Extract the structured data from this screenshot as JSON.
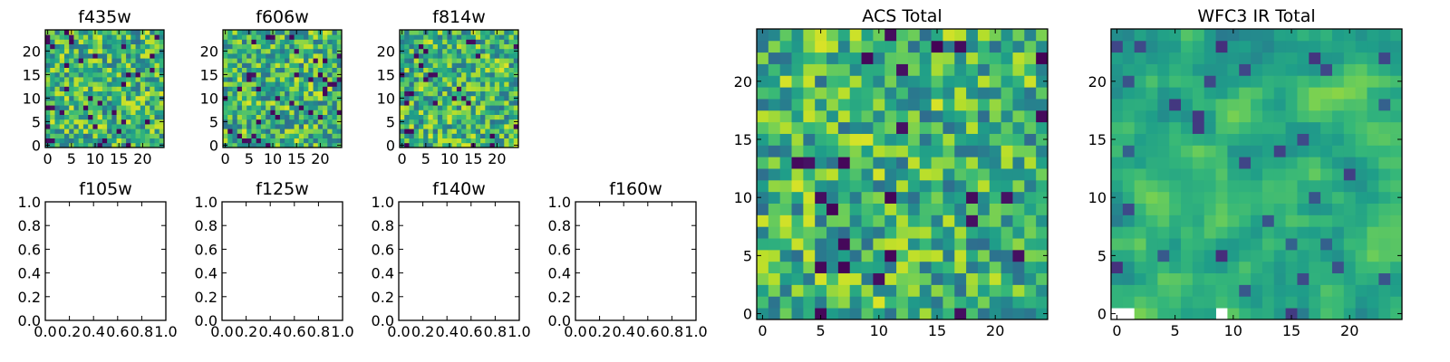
{
  "chart_data": [
    {
      "type": "heatmap",
      "title": "f435w",
      "xticks": [
        "0",
        "5",
        "10",
        "15",
        "20"
      ],
      "yticks": [
        "0",
        "5",
        "10",
        "15",
        "20"
      ],
      "xlim": [
        -0.5,
        24.5
      ],
      "ylim": [
        -0.5,
        24.5
      ],
      "grid_size": 25,
      "colormap": "viridis",
      "seed": 11
    },
    {
      "type": "heatmap",
      "title": "f606w",
      "xticks": [
        "0",
        "5",
        "10",
        "15",
        "20"
      ],
      "yticks": [
        "0",
        "5",
        "10",
        "15",
        "20"
      ],
      "xlim": [
        -0.5,
        24.5
      ],
      "ylim": [
        -0.5,
        24.5
      ],
      "grid_size": 25,
      "colormap": "viridis",
      "seed": 23
    },
    {
      "type": "heatmap",
      "title": "f814w",
      "xticks": [
        "0",
        "5",
        "10",
        "15",
        "20"
      ],
      "yticks": [
        "0",
        "5",
        "10",
        "15",
        "20"
      ],
      "xlim": [
        -0.5,
        24.5
      ],
      "ylim": [
        -0.5,
        24.5
      ],
      "grid_size": 25,
      "colormap": "viridis",
      "seed": 37
    },
    {
      "type": "empty",
      "title": "f105w",
      "xticks": [
        "0.0",
        "0.2",
        "0.4",
        "0.6",
        "0.8",
        "1.0"
      ],
      "yticks": [
        "0.0",
        "0.2",
        "0.4",
        "0.6",
        "0.8",
        "1.0"
      ],
      "xlim": [
        0,
        1
      ],
      "ylim": [
        0,
        1
      ]
    },
    {
      "type": "empty",
      "title": "f125w",
      "xticks": [
        "0.0",
        "0.2",
        "0.4",
        "0.6",
        "0.8",
        "1.0"
      ],
      "yticks": [
        "0.0",
        "0.2",
        "0.4",
        "0.6",
        "0.8",
        "1.0"
      ],
      "xlim": [
        0,
        1
      ],
      "ylim": [
        0,
        1
      ]
    },
    {
      "type": "empty",
      "title": "f140w",
      "xticks": [
        "0.0",
        "0.2",
        "0.4",
        "0.6",
        "0.8",
        "1.0"
      ],
      "yticks": [
        "0.0",
        "0.2",
        "0.4",
        "0.6",
        "0.8",
        "1.0"
      ],
      "xlim": [
        0,
        1
      ],
      "ylim": [
        0,
        1
      ]
    },
    {
      "type": "empty",
      "title": "f160w",
      "xticks": [
        "0.0",
        "0.2",
        "0.4",
        "0.6",
        "0.8",
        "1.0"
      ],
      "yticks": [
        "0.0",
        "0.2",
        "0.4",
        "0.6",
        "0.8",
        "1.0"
      ],
      "xlim": [
        0,
        1
      ],
      "ylim": [
        0,
        1
      ]
    },
    {
      "type": "heatmap",
      "title": "ACS Total",
      "xticks": [
        "0",
        "5",
        "10",
        "15",
        "20"
      ],
      "yticks": [
        "0",
        "5",
        "10",
        "15",
        "20"
      ],
      "xlim": [
        -0.5,
        24.5
      ],
      "ylim": [
        -0.5,
        24.5
      ],
      "grid_size": 25,
      "colormap": "viridis",
      "seed": 53
    },
    {
      "type": "heatmap",
      "title": "WFC3 IR Total",
      "xticks": [
        "0",
        "5",
        "10",
        "15",
        "20"
      ],
      "yticks": [
        "0",
        "5",
        "10",
        "15",
        "20"
      ],
      "xlim": [
        -0.5,
        24.5
      ],
      "ylim": [
        -0.5,
        24.5
      ],
      "grid_size": 25,
      "colormap": "viridis",
      "seed": 71,
      "smooth": true,
      "masked_cells": [
        [
          0,
          0
        ],
        [
          1,
          0
        ],
        [
          9,
          0
        ]
      ]
    }
  ]
}
